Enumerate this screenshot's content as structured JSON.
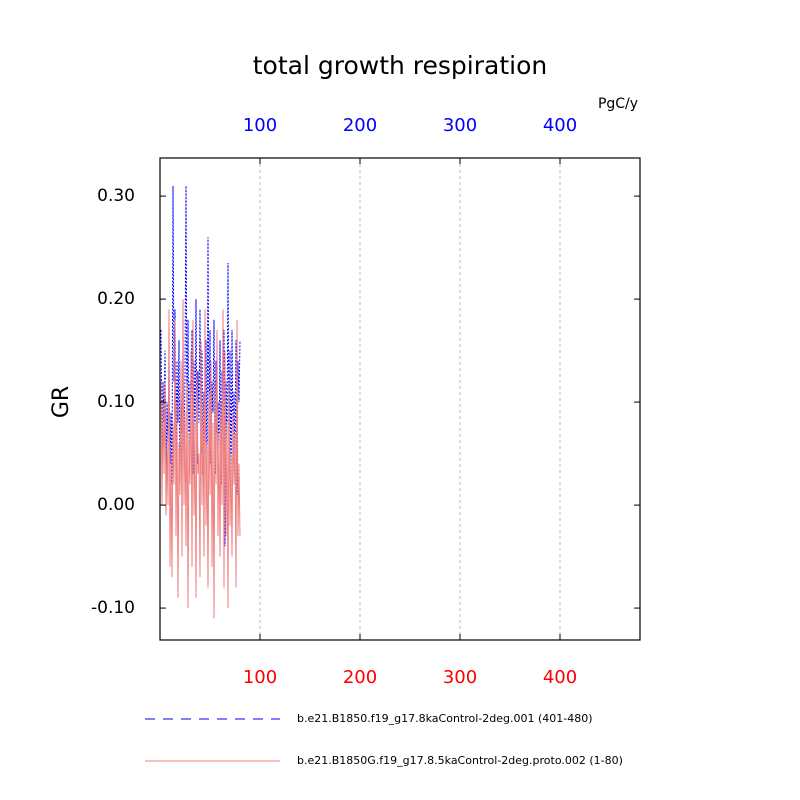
{
  "chart_data": {
    "type": "line",
    "title": "total growth respiration",
    "ylabel": "GR",
    "x2label": "PgC/y",
    "x": [
      1,
      2,
      3,
      4,
      5,
      6,
      7,
      8,
      9,
      10,
      11,
      12,
      13,
      14,
      15,
      16,
      17,
      18,
      19,
      20,
      21,
      22,
      23,
      24,
      25,
      26,
      27,
      28,
      29,
      30,
      31,
      32,
      33,
      34,
      35,
      36,
      37,
      38,
      39,
      40,
      41,
      42,
      43,
      44,
      45,
      46,
      47,
      48,
      49,
      50,
      51,
      52,
      53,
      54,
      55,
      56,
      57,
      58,
      59,
      60,
      61,
      62,
      63,
      64,
      65,
      66,
      67,
      68,
      69,
      70,
      71,
      72,
      73,
      74,
      75,
      76,
      77,
      78,
      79,
      80
    ],
    "series": [
      {
        "name": "b.e21.B1850.f19_g17.8kaControl-2deg.001 (401-480)",
        "color": "#0000ff",
        "dash": true,
        "values": [
          0.17,
          0.05,
          0.12,
          0.08,
          0.15,
          0.03,
          0.1,
          0.06,
          0.14,
          0.04,
          0.09,
          0.02,
          0.31,
          0.12,
          0.19,
          0.05,
          0.14,
          0.08,
          0.16,
          0.02,
          0.11,
          0.07,
          0.15,
          0.03,
          0.13,
          0.31,
          0.06,
          0.18,
          0.04,
          0.12,
          0.09,
          0.17,
          0.03,
          0.14,
          0.06,
          0.2,
          0.04,
          0.13,
          0.08,
          0.19,
          0.05,
          0.15,
          0.03,
          0.11,
          0.07,
          0.16,
          0.02,
          0.26,
          0.06,
          0.17,
          0.04,
          0.12,
          0.09,
          0.18,
          0.03,
          0.14,
          0.07,
          0.1,
          0.05,
          0.16,
          0.02,
          0.13,
          0.08,
          0.17,
          -0.04,
          0.12,
          0.06,
          0.235,
          0.04,
          0.15,
          0.01,
          0.17,
          0.05,
          0.11,
          0.03,
          0.16,
          0.01,
          0.14,
          0.1,
          0.16
        ]
      },
      {
        "name": "b.e21.B1850G.f19_g17.8.5kaControl-2deg.proto.002 (1-80)",
        "color": "#f08080",
        "dash": false,
        "values": [
          0.12,
          0.0,
          0.1,
          0.03,
          0.12,
          -0.01,
          0.06,
          0.0,
          0.19,
          -0.06,
          0.05,
          -0.07,
          0.08,
          0.02,
          0.18,
          -0.03,
          0.1,
          -0.09,
          0.06,
          0.01,
          0.14,
          -0.05,
          0.2,
          0.0,
          0.09,
          -0.04,
          0.12,
          -0.1,
          0.07,
          0.02,
          0.15,
          -0.06,
          0.18,
          -0.01,
          0.08,
          -0.09,
          0.13,
          0.03,
          0.05,
          -0.07,
          0.16,
          0.0,
          0.1,
          -0.05,
          0.19,
          -0.02,
          0.06,
          -0.08,
          0.11,
          0.01,
          0.14,
          -0.06,
          0.08,
          -0.11,
          0.12,
          0.02,
          0.17,
          -0.03,
          0.07,
          -0.05,
          0.1,
          0.0,
          0.19,
          -0.08,
          0.15,
          -0.03,
          0.08,
          -0.1,
          0.12,
          -0.02,
          0.05,
          -0.05,
          0.09,
          0.02,
          0.07,
          -0.08,
          0.18,
          -0.03,
          0.04,
          -0.03
        ]
      }
    ],
    "xlim": [
      0,
      480
    ],
    "xticks": [
      100,
      200,
      300,
      400
    ],
    "xtick_color": "#ff0000",
    "x2ticks": [
      100,
      200,
      300,
      400
    ],
    "x2tick_color": "#0000ff",
    "ylim": [
      -0.131,
      0.337
    ],
    "yticks": [
      {
        "value": -0.1,
        "label": "-0.10"
      },
      {
        "value": 0,
        "label": "0.00"
      },
      {
        "value": 0.1,
        "label": "0.10"
      },
      {
        "value": 0.2,
        "label": "0.20"
      },
      {
        "value": 0.3,
        "label": "0.30"
      }
    ],
    "grid": true
  }
}
